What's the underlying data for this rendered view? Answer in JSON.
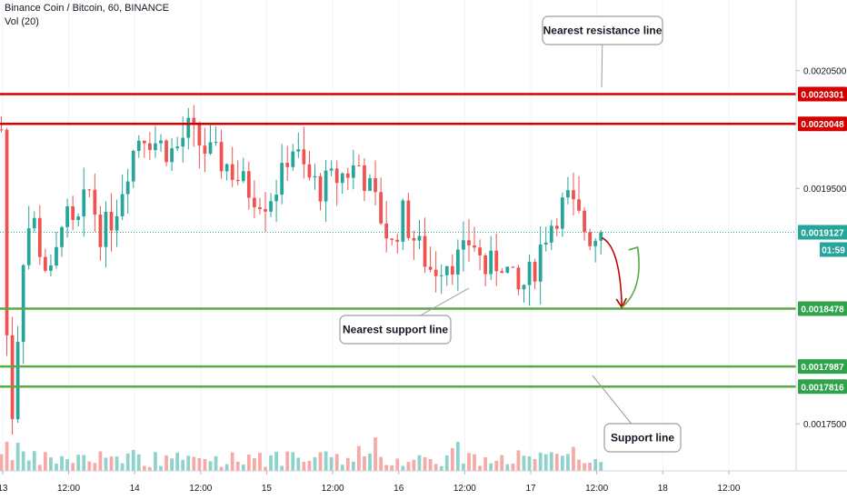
{
  "header": {
    "symbol_line": "Binance Coin / Bitcoin, 60, BINANCE",
    "volume_label": "Vol (20)"
  },
  "chart_data": {
    "type": "candlestick",
    "symbol": "Binance Coin / Bitcoin",
    "interval": "60",
    "exchange": "BINANCE",
    "ylim": [
      0.00171,
      0.00211
    ],
    "y_ticks": [
      "0.0020500",
      "0.0019500",
      "0.0017500"
    ],
    "x_ticks": [
      "13",
      "12:00",
      "14",
      "12:00",
      "15",
      "12:00",
      "16",
      "12:00",
      "17",
      "12:00",
      "18",
      "12:00"
    ],
    "x_tick_days": [
      13.0,
      13.5,
      14.0,
      14.5,
      15.0,
      15.5,
      16.0,
      16.5,
      17.0,
      17.5,
      18.0,
      18.5
    ],
    "x_range_days": [
      12.98,
      19.01
    ],
    "horizontal_lines": [
      {
        "value": 0.0020301,
        "label": "0.0020301",
        "color": "#d40000",
        "kind": "resistance"
      },
      {
        "value": 0.0020048,
        "label": "0.0020048",
        "color": "#d40000",
        "kind": "resistance"
      },
      {
        "value": 0.0018478,
        "label": "0.0018478",
        "color": "#5aaa46",
        "kind": "support"
      },
      {
        "value": 0.0017987,
        "label": "0.0017987",
        "color": "#5aaa46",
        "kind": "support"
      },
      {
        "value": 0.0017816,
        "label": "0.0017816",
        "color": "#5aaa46",
        "kind": "support"
      }
    ],
    "current_price": {
      "value": 0.0019127,
      "label": "0.0019127",
      "countdown": "01:59",
      "color": "#26a69a"
    },
    "annotations": [
      {
        "text": "Nearest resistance line"
      },
      {
        "text": "Nearest support line"
      },
      {
        "text": "Support line"
      }
    ],
    "projection": {
      "down": [
        [
          17.54,
          0.001908
        ],
        [
          17.69,
          0.001849
        ]
      ],
      "up": [
        [
          17.69,
          0.001849
        ],
        [
          17.81,
          0.0019
        ]
      ]
    },
    "colors": {
      "up": "#26a69a",
      "down": "#ef5350",
      "vol_up": "#8dd3cc",
      "vol_down": "#f7a9a7",
      "axis_tag_up": "#2ea34a",
      "axis_tag_down": "#d40000"
    }
  }
}
